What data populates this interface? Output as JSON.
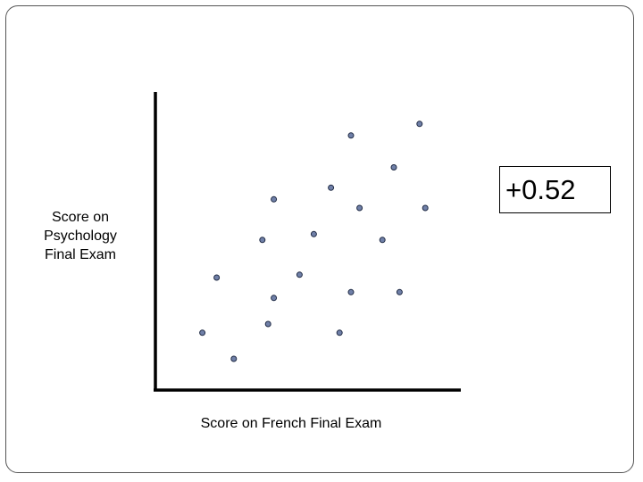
{
  "chart_data": {
    "type": "scatter",
    "title": "",
    "xlabel": "Score on French Final Exam",
    "ylabel_lines": [
      "Score on",
      "Psychology",
      "Final Exam"
    ],
    "annotation": "+0.52",
    "xlim": [
      0,
      100
    ],
    "ylim": [
      0,
      100
    ],
    "grid": false,
    "legend": "none",
    "point_color": "#7080a8",
    "point_stroke": "#1f2a44",
    "axis_color": "#000000",
    "points": [
      {
        "x": 13,
        "y": 17
      },
      {
        "x": 24,
        "y": 8
      },
      {
        "x": 18,
        "y": 36
      },
      {
        "x": 36,
        "y": 20
      },
      {
        "x": 38,
        "y": 29
      },
      {
        "x": 47,
        "y": 37
      },
      {
        "x": 61,
        "y": 17
      },
      {
        "x": 65,
        "y": 31
      },
      {
        "x": 82,
        "y": 31
      },
      {
        "x": 34,
        "y": 49
      },
      {
        "x": 52,
        "y": 51
      },
      {
        "x": 76,
        "y": 49
      },
      {
        "x": 38,
        "y": 63
      },
      {
        "x": 58,
        "y": 67
      },
      {
        "x": 68,
        "y": 60
      },
      {
        "x": 65,
        "y": 85
      },
      {
        "x": 80,
        "y": 74
      },
      {
        "x": 89,
        "y": 89
      },
      {
        "x": 91,
        "y": 60
      }
    ]
  }
}
